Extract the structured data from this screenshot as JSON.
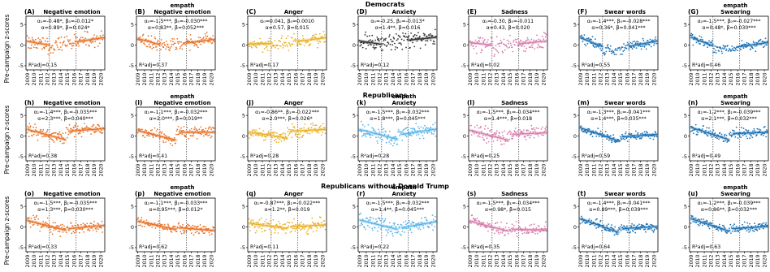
{
  "figure": {
    "ylabel": "Pre-campaign z-scores",
    "row_titles": [
      "Democrats",
      "Republicans",
      "Republicans without Donald Trump"
    ]
  },
  "colors": {
    "Negative emotion": "#e8742a",
    "empath Negative emotion": "#e8742a",
    "Anger": "#eab32c",
    "empath Anxiety": "#5bb5e8",
    "Sadness": "#d77fae",
    "Swear words": "#1f73b5",
    "empath Swearing": "#1f73b5",
    "axis": "#000000",
    "vline": "#555555"
  },
  "axes_common": {
    "yticks": [
      -5,
      0,
      5
    ],
    "ylim": [
      -6,
      7
    ],
    "xticks": [
      "2009",
      "2010",
      "2011",
      "2012",
      "2013",
      "2014",
      "2015",
      "2016",
      "2017",
      "2018",
      "2019",
      "2020"
    ],
    "xlim": [
      2008.8,
      2020.6
    ],
    "vlines": [
      2012.3,
      2016.3
    ]
  },
  "chart_data": [
    {
      "type": "scatter",
      "panel": "(A)",
      "metric": "Negative emotion",
      "row": 0,
      "col": 0,
      "l1": "α₀=-0.48*, β₀=-0.012*",
      "l2": "α=0.89*, β=0.024*",
      "r2": "0.15",
      "seg": [
        [
          2009,
          0.9
        ],
        [
          2012.3,
          0.0
        ],
        [
          2016.3,
          0.8
        ],
        [
          2020.5,
          1.8
        ]
      ],
      "noise": 1.2
    },
    {
      "type": "scatter",
      "panel": "(B)",
      "metric": "empath|Negative emotion",
      "row": 0,
      "col": 1,
      "l1": "α₀=-1.5***, β₀=-0.030***",
      "l2": "α=0.83**, β=0.052***",
      "r2": "0.37",
      "seg": [
        [
          2009,
          1.6
        ],
        [
          2012.3,
          0.1
        ],
        [
          2016.3,
          0.5
        ],
        [
          2020.5,
          1.4
        ]
      ],
      "noise": 1.0
    },
    {
      "type": "scatter",
      "panel": "(C)",
      "metric": "Anger",
      "row": 0,
      "col": 2,
      "l1": "α₀=0.041, β₀=0.0010",
      "l2": "α=0.57, β=0.015",
      "r2": "0.17",
      "seg": [
        [
          2009,
          0.3
        ],
        [
          2012.3,
          0.4
        ],
        [
          2016.3,
          0.9
        ],
        [
          2020.5,
          1.8
        ]
      ],
      "noise": 1.0
    },
    {
      "type": "scatter",
      "panel": "(D)",
      "metric": "Anxiety",
      "row": 0,
      "col": 3,
      "l1": "α₀=-0.25, β₀=-0.013*",
      "l2": "α=1.4**, β=0.016",
      "r2": "0.12",
      "seg": [
        [
          2009,
          1.0
        ],
        [
          2012.3,
          0.2
        ],
        [
          2016.3,
          1.2
        ],
        [
          2020.5,
          1.9
        ]
      ],
      "noise": 1.2
    },
    {
      "type": "scatter",
      "panel": "(E)",
      "metric": "Sadness",
      "row": 0,
      "col": 4,
      "l1": "α₀=-0.30, β₀=-0.011",
      "l2": "α=0.43, β=0.020",
      "r2": "0.02",
      "seg": [
        [
          2009,
          0.6
        ],
        [
          2012.3,
          0.0
        ],
        [
          2016.3,
          0.3
        ],
        [
          2020.5,
          1.0
        ]
      ],
      "noise": 1.2
    },
    {
      "type": "scatter",
      "panel": "(F)",
      "metric": "Swear words",
      "row": 0,
      "col": 5,
      "l1": "α₀=-1.4***, β₀=-0.028***",
      "l2": "α=0.36*, β=0.041***",
      "r2": "0.55",
      "seg": [
        [
          2009,
          1.8
        ],
        [
          2012.3,
          -0.4
        ],
        [
          2016.3,
          -0.3
        ],
        [
          2020.5,
          1.0
        ]
      ],
      "noise": 0.8
    },
    {
      "type": "scatter",
      "panel": "(G)",
      "metric": "empath|Swearing",
      "row": 0,
      "col": 6,
      "l1": "α₀=-1.5***, β₀=-0.027***",
      "l2": "α=0.48*, β=0.030***",
      "r2": "0.46",
      "seg": [
        [
          2009,
          1.9
        ],
        [
          2012.3,
          -0.2
        ],
        [
          2016.3,
          -0.4
        ],
        [
          2020.5,
          0.6
        ]
      ],
      "noise": 0.8
    },
    {
      "type": "scatter",
      "panel": "(h)",
      "metric": "Negative emotion",
      "row": 1,
      "col": 0,
      "l1": "α₁=-1.4***, β₁=-0.035***",
      "l2": "α=2.3***, β=0.040***",
      "r2": "0.38",
      "seg": [
        [
          2009,
          1.6
        ],
        [
          2014.7,
          -0.9
        ],
        [
          2015.3,
          1.2
        ],
        [
          2020.5,
          1.8
        ]
      ],
      "noise": 1.0
    },
    {
      "type": "scatter",
      "panel": "(i)",
      "metric": "empath|Negative emotion",
      "row": 1,
      "col": 1,
      "l1": "α₁=-1.1***, β₁=-0.032***",
      "l2": "α=2.0***, β=0.019**",
      "r2": "0.41",
      "seg": [
        [
          2009,
          1.3
        ],
        [
          2014.7,
          -1.0
        ],
        [
          2015.3,
          0.9
        ],
        [
          2020.5,
          0.9
        ]
      ],
      "noise": 0.9
    },
    {
      "type": "scatter",
      "panel": "(j)",
      "metric": "Anger",
      "row": 1,
      "col": 2,
      "l1": "α₁=-0.86**, β₁=-0.022***",
      "l2": "α=2.0***, β=0.026*",
      "r2": "0.28",
      "seg": [
        [
          2009,
          1.0
        ],
        [
          2014.7,
          -0.5
        ],
        [
          2015.3,
          1.2
        ],
        [
          2020.5,
          1.6
        ]
      ],
      "noise": 1.0
    },
    {
      "type": "scatter",
      "panel": "(k)",
      "metric": "empath|Anxiety",
      "row": 1,
      "col": 3,
      "l1": "α₁=-1.5***, β₁=-0.032***",
      "l2": "α=1.8***, β=0.045***",
      "r2": "0.28",
      "seg": [
        [
          2009,
          1.6
        ],
        [
          2014.7,
          -0.8
        ],
        [
          2015.3,
          0.4
        ],
        [
          2020.5,
          1.7
        ]
      ],
      "noise": 1.2
    },
    {
      "type": "scatter",
      "panel": "(l)",
      "metric": "Sadness",
      "row": 1,
      "col": 4,
      "l1": "α₁=-1.5***, β₁=-0.034***",
      "l2": "α=1.4***, β=0.018",
      "r2": "0.25",
      "seg": [
        [
          2009,
          1.4
        ],
        [
          2014.7,
          -1.0
        ],
        [
          2015.3,
          0.4
        ],
        [
          2020.5,
          0.8
        ]
      ],
      "noise": 1.1
    },
    {
      "type": "scatter",
      "panel": "(m)",
      "metric": "Swear words",
      "row": 1,
      "col": 5,
      "l1": "α₁=-1.3***, β₁=-0.041***",
      "l2": "α=1.4***, β=0.035***",
      "r2": "0.59",
      "seg": [
        [
          2009,
          2.0
        ],
        [
          2014.7,
          -1.2
        ],
        [
          2015.3,
          -0.2
        ],
        [
          2020.5,
          0.4
        ]
      ],
      "noise": 0.7
    },
    {
      "type": "scatter",
      "panel": "(n)",
      "metric": "empath|Swearing",
      "row": 1,
      "col": 6,
      "l1": "α₁=-1.2***, β₁=-0.039***",
      "l2": "α=2.1***, β=0.032***",
      "r2": "0.49",
      "seg": [
        [
          2009,
          2.1
        ],
        [
          2014.7,
          -0.9
        ],
        [
          2015.3,
          0.6
        ],
        [
          2020.5,
          0.9
        ]
      ],
      "noise": 0.8
    },
    {
      "type": "scatter",
      "panel": "(o)",
      "metric": "Negative emotion",
      "row": 2,
      "col": 0,
      "l1": "α₁=-1.5***, β₁=-0.035***",
      "l2": "α=1.3***, β=0.030***",
      "r2": "0.33",
      "seg": [
        [
          2009,
          1.6
        ],
        [
          2014.7,
          -0.8
        ],
        [
          2015.3,
          -0.4
        ],
        [
          2020.5,
          0.4
        ]
      ],
      "noise": 1.0
    },
    {
      "type": "scatter",
      "panel": "(p)",
      "metric": "empath|Negative emotion",
      "row": 2,
      "col": 1,
      "l1": "α₁=-1.1***, β₁=-0.033***",
      "l2": "α=0.95***, β=0.012*",
      "r2": "0.62",
      "seg": [
        [
          2009,
          1.4
        ],
        [
          2014.7,
          -0.6
        ],
        [
          2015.3,
          -0.2
        ],
        [
          2020.5,
          -0.9
        ]
      ],
      "noise": 0.7
    },
    {
      "type": "scatter",
      "panel": "(q)",
      "metric": "Anger",
      "row": 2,
      "col": 2,
      "l1": "α₁=-0.87***, β₁=-0.022***",
      "l2": "α=1.2**, β=0.019",
      "r2": "0.11",
      "seg": [
        [
          2009,
          0.9
        ],
        [
          2014.7,
          -0.4
        ],
        [
          2015.3,
          0.1
        ],
        [
          2020.5,
          0.5
        ]
      ],
      "noise": 1.1
    },
    {
      "type": "scatter",
      "panel": "(r)",
      "metric": "empath|Anxiety",
      "row": 2,
      "col": 3,
      "l1": "α₁=-1.5***, β₁=-0.032***",
      "l2": "α=1.4**, β=0.045***",
      "r2": "0.22",
      "seg": [
        [
          2009,
          1.7
        ],
        [
          2014.7,
          -0.6
        ],
        [
          2015.3,
          -0.2
        ],
        [
          2020.5,
          1.3
        ]
      ],
      "noise": 1.2
    },
    {
      "type": "scatter",
      "panel": "(s)",
      "metric": "Sadness",
      "row": 2,
      "col": 4,
      "l1": "α₁=-1.5***, β₁=-0.034***",
      "l2": "α=0.98*, β=0.015",
      "r2": "0.35",
      "seg": [
        [
          2009,
          1.4
        ],
        [
          2014.7,
          -1.0
        ],
        [
          2015.3,
          -0.6
        ],
        [
          2020.5,
          -0.7
        ]
      ],
      "noise": 1.0
    },
    {
      "type": "scatter",
      "panel": "(t)",
      "metric": "Swear words",
      "row": 2,
      "col": 5,
      "l1": "α₁=-1.4***, β₁=-0.041***",
      "l2": "α=0.89***, β=0.039***",
      "r2": "0.64",
      "seg": [
        [
          2009,
          2.0
        ],
        [
          2014.7,
          -1.3
        ],
        [
          2015.3,
          -0.4
        ],
        [
          2020.5,
          0.1
        ]
      ],
      "noise": 0.7
    },
    {
      "type": "scatter",
      "panel": "(u)",
      "metric": "empath|Swearing",
      "row": 2,
      "col": 6,
      "l1": "α₁=-1.2***, β₁=-0.039***",
      "l2": "α=0.86**, β=0.032***",
      "r2": "0.63",
      "seg": [
        [
          2009,
          2.0
        ],
        [
          2014.7,
          -1.0
        ],
        [
          2015.3,
          -0.4
        ],
        [
          2020.5,
          0.1
        ]
      ],
      "noise": 0.7
    }
  ]
}
